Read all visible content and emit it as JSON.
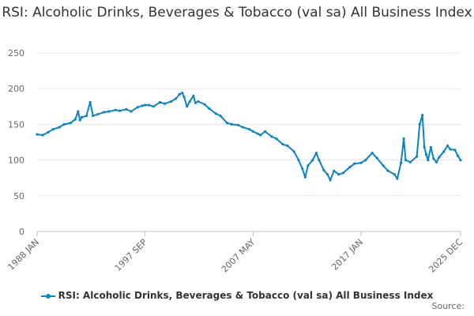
{
  "chart_data": {
    "type": "line",
    "title": "RSI: Alcoholic Drinks, Beverages & Tobacco (val sa) All Business Index",
    "xlabel": "",
    "ylabel": "",
    "ylim": [
      0,
      250
    ],
    "yticks": [
      "0",
      "50",
      "100",
      "150",
      "200",
      "250"
    ],
    "xticks": [
      "1988 JAN",
      "1997 SEP",
      "2007 MAY",
      "2017 JAN",
      "2025 DEC"
    ],
    "x_range": [
      "1988 JAN",
      "2025 DEC"
    ],
    "grid": true,
    "legend_position": "bottom",
    "credit": "Source:",
    "series": [
      {
        "name": "RSI: Alcoholic Drinks, Beverages & Tobacco (val sa) All Business Index",
        "color": "#0b84c4",
        "points": [
          [
            "1988 JAN",
            136
          ],
          [
            "1988 JUL",
            135
          ],
          [
            "1989 JAN",
            139
          ],
          [
            "1989 JUN",
            143
          ],
          [
            "1990 JAN",
            146
          ],
          [
            "1990 JUN",
            150
          ],
          [
            "1991 JAN",
            152
          ],
          [
            "1991 JUN",
            157
          ],
          [
            "1991 SEP",
            168
          ],
          [
            "1991 NOV",
            156
          ],
          [
            "1992 JAN",
            160
          ],
          [
            "1992 JUN",
            162
          ],
          [
            "1992 OCT",
            181
          ],
          [
            "1993 JAN",
            162
          ],
          [
            "1993 JUN",
            164
          ],
          [
            "1994 JAN",
            167
          ],
          [
            "1994 JUN",
            168
          ],
          [
            "1995 JAN",
            170
          ],
          [
            "1995 JUN",
            169
          ],
          [
            "1996 JAN",
            171
          ],
          [
            "1996 JUN",
            168
          ],
          [
            "1997 JAN",
            174
          ],
          [
            "1997 JUN",
            176
          ],
          [
            "1997 SEP",
            177
          ],
          [
            "1998 JAN",
            177
          ],
          [
            "1998 JUN",
            175
          ],
          [
            "1999 JAN",
            181
          ],
          [
            "1999 JUN",
            179
          ],
          [
            "2000 JAN",
            182
          ],
          [
            "2000 JUN",
            186
          ],
          [
            "2000 OCT",
            192
          ],
          [
            "2001 JAN",
            194
          ],
          [
            "2001 MAR",
            188
          ],
          [
            "2001 JUN",
            175
          ],
          [
            "2001 SEP",
            182
          ],
          [
            "2002 JAN",
            190
          ],
          [
            "2002 MAR",
            180
          ],
          [
            "2002 JUN",
            182
          ],
          [
            "2003 JAN",
            178
          ],
          [
            "2003 JUN",
            172
          ],
          [
            "2004 JAN",
            165
          ],
          [
            "2004 JUN",
            162
          ],
          [
            "2005 JAN",
            152
          ],
          [
            "2005 JUN",
            150
          ],
          [
            "2006 JAN",
            149
          ],
          [
            "2006 JUN",
            146
          ],
          [
            "2007 JAN",
            143
          ],
          [
            "2007 MAY",
            140
          ],
          [
            "2007 OCT",
            137
          ],
          [
            "2008 JAN",
            135
          ],
          [
            "2008 JUN",
            140
          ],
          [
            "2009 JAN",
            133
          ],
          [
            "2009 JUN",
            130
          ],
          [
            "2010 JAN",
            122
          ],
          [
            "2010 JUN",
            120
          ],
          [
            "2011 JAN",
            112
          ],
          [
            "2011 JUN",
            100
          ],
          [
            "2011 OCT",
            88
          ],
          [
            "2012 JAN",
            76
          ],
          [
            "2012 APR",
            92
          ],
          [
            "2012 SEP",
            100
          ],
          [
            "2013 JAN",
            110
          ],
          [
            "2013 APR",
            100
          ],
          [
            "2013 SEP",
            86
          ],
          [
            "2014 JAN",
            80
          ],
          [
            "2014 APR",
            72
          ],
          [
            "2014 AUG",
            85
          ],
          [
            "2015 JAN",
            80
          ],
          [
            "2015 JUN",
            82
          ],
          [
            "2016 JAN",
            90
          ],
          [
            "2016 JUN",
            95
          ],
          [
            "2017 JAN",
            96
          ],
          [
            "2017 JUN",
            100
          ],
          [
            "2018 JAN",
            110
          ],
          [
            "2018 JUN",
            103
          ],
          [
            "2019 JAN",
            92
          ],
          [
            "2019 JUN",
            85
          ],
          [
            "2020 JAN",
            80
          ],
          [
            "2020 APR",
            74
          ],
          [
            "2020 AUG",
            96
          ],
          [
            "2020 NOV",
            130
          ],
          [
            "2021 JAN",
            100
          ],
          [
            "2021 JUN",
            97
          ],
          [
            "2022 JAN",
            105
          ],
          [
            "2022 APR",
            150
          ],
          [
            "2022 JUL",
            163
          ],
          [
            "2022 SEP",
            118
          ],
          [
            "2022 NOV",
            108
          ],
          [
            "2023 JAN",
            100
          ],
          [
            "2023 APR",
            118
          ],
          [
            "2023 JUL",
            102
          ],
          [
            "2023 OCT",
            97
          ],
          [
            "2024 JAN",
            104
          ],
          [
            "2024 JUN",
            112
          ],
          [
            "2024 OCT",
            120
          ],
          [
            "2025 JAN",
            115
          ],
          [
            "2025 JUN",
            114
          ],
          [
            "2025 SEP",
            106
          ],
          [
            "2025 DEC",
            100
          ]
        ]
      }
    ]
  }
}
